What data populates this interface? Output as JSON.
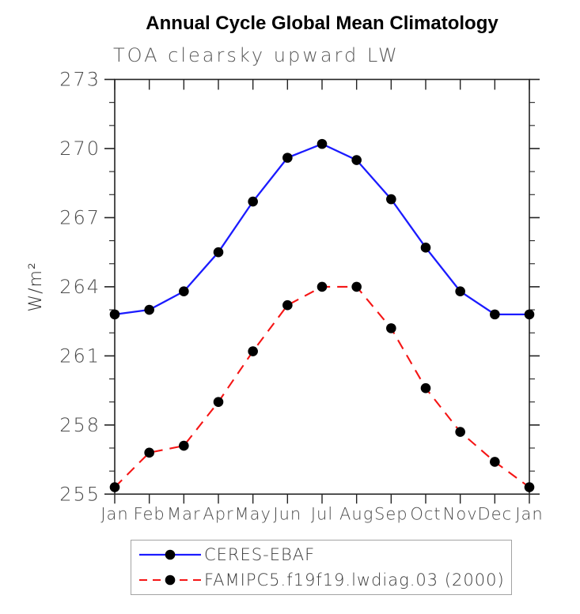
{
  "title": "Annual Cycle Global Mean Climatology",
  "subtitle": "TOA clearsky upward LW",
  "chart_data": {
    "type": "line",
    "x": [
      "Jan",
      "Feb",
      "Mar",
      "Apr",
      "May",
      "Jun",
      "Jul",
      "Aug",
      "Sep",
      "Oct",
      "Nov",
      "Dec",
      "Jan"
    ],
    "ylabel": "W/m²",
    "ylim": [
      255,
      273
    ],
    "yticks": [
      255,
      258,
      261,
      264,
      267,
      270,
      273
    ],
    "y_minor_step": 1,
    "grid": false,
    "legend_position": "bottom",
    "marker_color": "#000000",
    "axis_color": "#222222",
    "tick_label_color": "#4a4a4a",
    "series": [
      {
        "name": "CERES-EBAF",
        "color": "#1b1bff",
        "style": "solid",
        "values": [
          262.8,
          263.0,
          263.8,
          265.5,
          267.7,
          269.6,
          270.2,
          269.5,
          267.8,
          265.7,
          263.8,
          262.8,
          262.8
        ]
      },
      {
        "name": "FAMIPC5.f19f19.lwdiag.03 (2000)",
        "color": "#f51515",
        "style": "dashed",
        "values": [
          255.3,
          256.8,
          257.1,
          259.0,
          261.2,
          263.2,
          264.0,
          264.0,
          262.2,
          259.6,
          257.7,
          256.4,
          255.3
        ]
      }
    ]
  }
}
